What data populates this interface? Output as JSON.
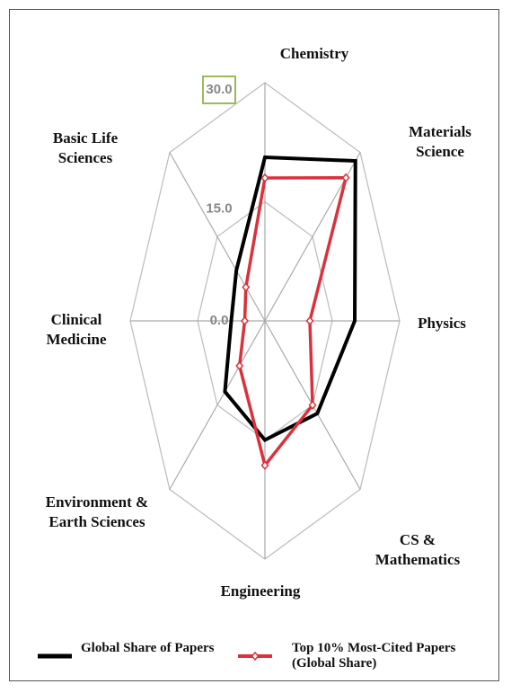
{
  "chart_data": {
    "type": "radar",
    "categories": [
      "Chemistry",
      "Materials Science",
      "Physics",
      "CS & Mathematics",
      "Engineering",
      "Environment & Earth Sciences",
      "Clinical Medicine",
      "Basic Life Sciences"
    ],
    "series": [
      {
        "name": "Global Share of Papers",
        "color": "#000000",
        "values": [
          20.6,
          28.5,
          20,
          16.5,
          15,
          12.6,
          7.5,
          9
        ]
      },
      {
        "name": "Top 10% Most-Cited Papers (Global Share)",
        "color": "#d9323c",
        "values": [
          18,
          25.5,
          10,
          15,
          18.2,
          8,
          4.5,
          6
        ]
      }
    ],
    "rlim": [
      0,
      30
    ],
    "rticks": [
      {
        "value": 0,
        "label": "0.0"
      },
      {
        "value": 15,
        "label": "15.0"
      },
      {
        "value": 30,
        "label": "30.0"
      }
    ],
    "grid": true
  }
}
